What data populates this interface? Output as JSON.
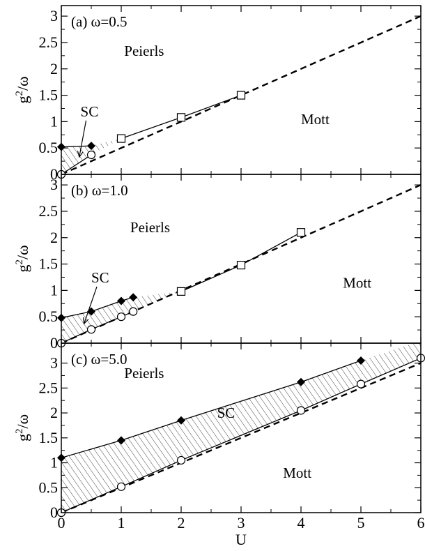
{
  "chart_data": [
    {
      "type": "line",
      "panel_label": "(a) ω=0.5",
      "xlabel": "",
      "ylabel": "g²/ω",
      "xlim": [
        0,
        6
      ],
      "ylim": [
        0,
        3.2
      ],
      "xticks": [
        0,
        1,
        2,
        3,
        4,
        5,
        6
      ],
      "yticks": [
        0,
        0.5,
        1,
        1.5,
        2,
        2.5,
        3
      ],
      "x_tick_labels_shown": false,
      "series": [
        {
          "marker": "diamond-filled",
          "line": "solid",
          "x": [
            0,
            0.5
          ],
          "y": [
            0.52,
            0.54
          ]
        },
        {
          "marker": "square-open",
          "line": "solid",
          "x": [
            1,
            2,
            3
          ],
          "y": [
            0.68,
            1.08,
            1.5
          ]
        },
        {
          "marker": "circle-open",
          "line": "solid",
          "x": [
            0,
            0.5
          ],
          "y": [
            0,
            0.37
          ]
        },
        {
          "marker": "none",
          "line": "dashed",
          "x": [
            0,
            6
          ],
          "y": [
            0,
            3
          ]
        }
      ],
      "hatched_region": {
        "upper": {
          "x": [
            0,
            0.5,
            1
          ],
          "y": [
            0.52,
            0.54,
            0.68
          ]
        },
        "lower": {
          "x": [
            0,
            0.5,
            1
          ],
          "y": [
            0,
            0.37,
            0.68
          ]
        }
      },
      "annotations": [
        {
          "text": "Peierls",
          "x": 1.05,
          "y": 2.25
        },
        {
          "text": "Mott",
          "x": 4.0,
          "y": 0.95
        },
        {
          "text": "SC",
          "x": 0.32,
          "y": 1.1,
          "arrow_to": [
            0.3,
            0.33
          ]
        }
      ]
    },
    {
      "type": "line",
      "panel_label": "(b) ω=1.0",
      "xlabel": "",
      "ylabel": "g²/ω",
      "xlim": [
        0,
        6
      ],
      "ylim": [
        0,
        3.2
      ],
      "xticks": [
        0,
        1,
        2,
        3,
        4,
        5,
        6
      ],
      "yticks": [
        0,
        0.5,
        1,
        1.5,
        2,
        2.5,
        3
      ],
      "x_tick_labels_shown": false,
      "series": [
        {
          "marker": "diamond-filled",
          "line": "solid",
          "x": [
            0,
            0.5,
            1,
            1.2
          ],
          "y": [
            0.48,
            0.6,
            0.8,
            0.87
          ]
        },
        {
          "marker": "square-open",
          "line": "solid",
          "x": [
            2,
            3,
            4
          ],
          "y": [
            0.98,
            1.48,
            2.1
          ]
        },
        {
          "marker": "circle-open",
          "line": "solid",
          "x": [
            0,
            0.5,
            1,
            1.2
          ],
          "y": [
            0,
            0.26,
            0.5,
            0.6
          ]
        },
        {
          "marker": "none",
          "line": "dashed",
          "x": [
            0,
            6
          ],
          "y": [
            0,
            3
          ]
        }
      ],
      "hatched_region": {
        "upper": {
          "x": [
            0,
            0.5,
            1,
            1.2,
            2
          ],
          "y": [
            0.48,
            0.6,
            0.8,
            0.87,
            0.98
          ]
        },
        "lower": {
          "x": [
            0,
            0.5,
            1,
            1.2,
            2
          ],
          "y": [
            0,
            0.26,
            0.5,
            0.6,
            0.98
          ]
        }
      },
      "annotations": [
        {
          "text": "Peierls",
          "x": 1.15,
          "y": 2.1
        },
        {
          "text": "Mott",
          "x": 4.7,
          "y": 1.05
        },
        {
          "text": "SC",
          "x": 0.5,
          "y": 1.15,
          "arrow_to": [
            0.38,
            0.37
          ]
        }
      ]
    },
    {
      "type": "line",
      "panel_label": "(c) ω=5.0",
      "xlabel": "U",
      "ylabel": "g²/ω",
      "xlim": [
        0,
        6
      ],
      "ylim": [
        0,
        3.4
      ],
      "xticks": [
        0,
        1,
        2,
        3,
        4,
        5,
        6
      ],
      "yticks": [
        0,
        0.5,
        1,
        1.5,
        2,
        2.5,
        3
      ],
      "x_tick_labels_shown": true,
      "series": [
        {
          "marker": "diamond-filled",
          "line": "solid",
          "x": [
            0,
            1,
            2,
            4,
            5
          ],
          "y": [
            1.1,
            1.45,
            1.85,
            2.62,
            3.05
          ]
        },
        {
          "marker": "circle-open",
          "line": "solid",
          "x": [
            0,
            1,
            2,
            4,
            5,
            6
          ],
          "y": [
            0,
            0.52,
            1.05,
            2.05,
            2.58,
            3.1
          ]
        },
        {
          "marker": "none",
          "line": "dashed",
          "x": [
            0,
            6
          ],
          "y": [
            0,
            3
          ]
        }
      ],
      "hatched_region": {
        "upper": {
          "x": [
            0,
            1,
            2,
            4,
            5,
            6
          ],
          "y": [
            1.1,
            1.45,
            1.85,
            2.62,
            3.05,
            3.45
          ]
        },
        "lower": {
          "x": [
            0,
            1,
            2,
            4,
            5,
            6
          ],
          "y": [
            0,
            0.52,
            1.05,
            2.05,
            2.58,
            3.1
          ]
        }
      },
      "annotations": [
        {
          "text": "Peierls",
          "x": 1.05,
          "y": 2.7
        },
        {
          "text": "Mott",
          "x": 3.7,
          "y": 0.7
        },
        {
          "text": "SC",
          "x": 2.6,
          "y": 1.9
        }
      ]
    }
  ]
}
